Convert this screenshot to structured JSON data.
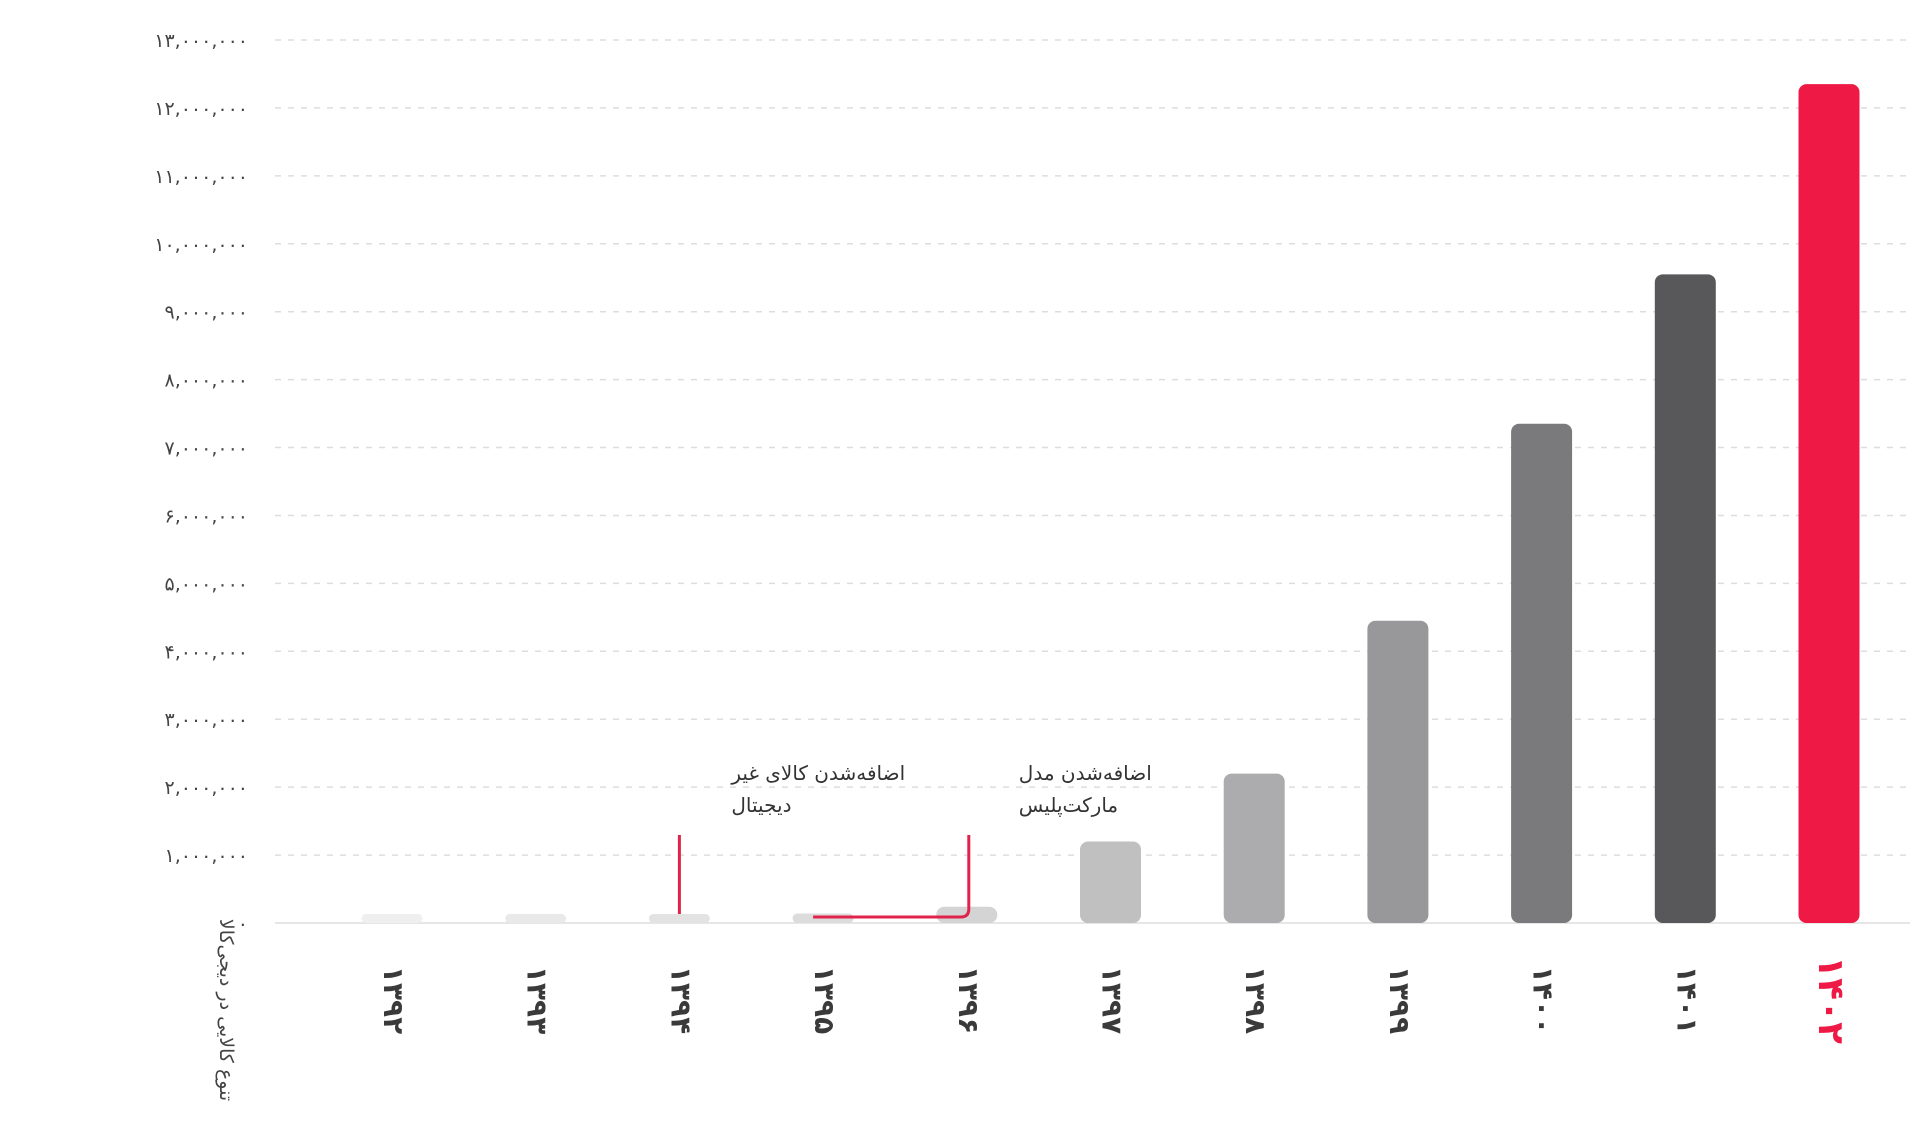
{
  "chart_data": {
    "type": "bar",
    "title": "",
    "xlabel": "",
    "ylabel": "تنوع کالایی در دیجی‌کالا",
    "categories": [
      "۱۳۹۲",
      "۱۳۹۳",
      "۱۳۹۴",
      "۱۳۹۵",
      "۱۳۹۶",
      "۱۳۹۷",
      "۱۳۹۸",
      "۱۳۹۹",
      "۱۴۰۰",
      "۱۴۰۱",
      "۱۴۰۲"
    ],
    "values": [
      20000,
      50000,
      90000,
      140000,
      240000,
      1200000,
      2200000,
      4450000,
      7350000,
      9550000,
      12350000
    ],
    "ylim": [
      0,
      13000000
    ],
    "yticks": [
      {
        "value": 0,
        "label": "۰"
      },
      {
        "value": 1000000,
        "label": "۱,۰۰۰,۰۰۰"
      },
      {
        "value": 2000000,
        "label": "۲,۰۰۰,۰۰۰"
      },
      {
        "value": 3000000,
        "label": "۳,۰۰۰,۰۰۰"
      },
      {
        "value": 4000000,
        "label": "۴,۰۰۰,۰۰۰"
      },
      {
        "value": 5000000,
        "label": "۵,۰۰۰,۰۰۰"
      },
      {
        "value": 6000000,
        "label": "۶,۰۰۰,۰۰۰"
      },
      {
        "value": 7000000,
        "label": "۷,۰۰۰,۰۰۰"
      },
      {
        "value": 8000000,
        "label": "۸,۰۰۰,۰۰۰"
      },
      {
        "value": 9000000,
        "label": "۹,۰۰۰,۰۰۰"
      },
      {
        "value": 10000000,
        "label": "۱۰,۰۰۰,۰۰۰"
      },
      {
        "value": 11000000,
        "label": "۱۱,۰۰۰,۰۰۰"
      },
      {
        "value": 12000000,
        "label": "۱۲,۰۰۰,۰۰۰"
      },
      {
        "value": 13000000,
        "label": "۱۳,۰۰۰,۰۰۰"
      }
    ],
    "grid": true,
    "highlight_index": 10,
    "colors": {
      "bars": [
        "#efefef",
        "#e9e9e9",
        "#e3e3e3",
        "#dcdcdc",
        "#d4d4d4",
        "#c0c0c1",
        "#acacae",
        "#98989b",
        "#7a7a7d",
        "#58585b",
        "#ee1944"
      ],
      "highlight": "#ee1944",
      "grid": "#dddddd",
      "annotation_line": "#e0234a"
    },
    "annotations": [
      {
        "category_index": 2,
        "lines": [
          "اضافه‌شدن کالای غیر",
          "دیجیتال"
        ]
      },
      {
        "category_index": 4,
        "lines": [
          "اضافه‌شدن مدل",
          "مارکت‌پلیس"
        ],
        "bracket_to_index": 3
      }
    ]
  }
}
